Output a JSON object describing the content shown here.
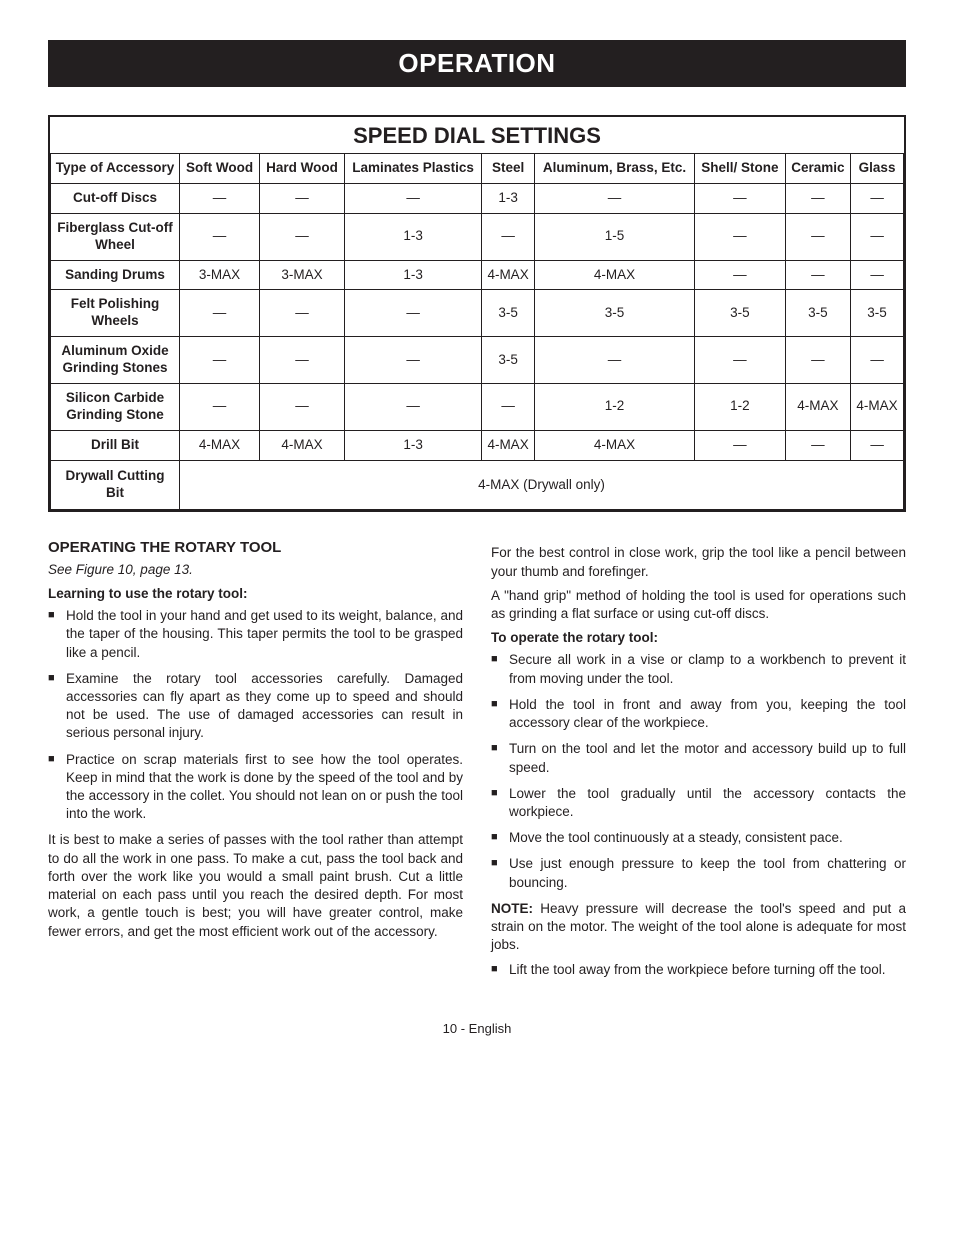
{
  "header": {
    "title": "OPERATION"
  },
  "table": {
    "title": "SPEED DIAL SETTINGS",
    "columns": [
      "Type of Accessory",
      "Soft Wood",
      "Hard Wood",
      "Laminates Plastics",
      "Steel",
      "Aluminum, Brass, Etc.",
      "Shell/ Stone",
      "Ceramic",
      "Glass"
    ],
    "rows": [
      {
        "head": "Cut-off Discs",
        "cells": [
          "—",
          "—",
          "—",
          "1-3",
          "—",
          "—",
          "—",
          "—"
        ]
      },
      {
        "head": "Fiberglass Cut-off Wheel",
        "cells": [
          "—",
          "—",
          "1-3",
          "—",
          "1-5",
          "—",
          "—",
          "—"
        ]
      },
      {
        "head": "Sanding Drums",
        "cells": [
          "3-MAX",
          "3-MAX",
          "1-3",
          "4-MAX",
          "4-MAX",
          "—",
          "—",
          "—"
        ]
      },
      {
        "head": "Felt Polishing Wheels",
        "cells": [
          "—",
          "—",
          "—",
          "3-5",
          "3-5",
          "3-5",
          "3-5",
          "3-5"
        ]
      },
      {
        "head": "Aluminum Oxide Grinding Stones",
        "cells": [
          "—",
          "—",
          "—",
          "3-5",
          "—",
          "—",
          "—",
          "—"
        ]
      },
      {
        "head": "Silicon Carbide Grinding Stone",
        "cells": [
          "—",
          "—",
          "—",
          "—",
          "1-2",
          "1-2",
          "4-MAX",
          "4-MAX"
        ]
      },
      {
        "head": "Drill Bit",
        "cells": [
          "4-MAX",
          "4-MAX",
          "1-3",
          "4-MAX",
          "4-MAX",
          "—",
          "—",
          "—"
        ]
      }
    ],
    "spannedRow": {
      "head": "Drywall Cutting Bit",
      "value": "4-MAX (Drywall only)"
    }
  },
  "left": {
    "title": "OPERATING THE ROTARY TOOL",
    "seeFig": "See Figure 10, page 13.",
    "learnHead": "Learning to use the rotary tool:",
    "bullets": [
      "Hold the tool in your hand and get used to its weight, balance, and the taper of the housing. This taper permits the tool to be grasped like a pencil.",
      "Examine the rotary tool accessories carefully. Damaged accessories can fly apart as they come up to speed and should not be used. The use of damaged accessories can result in serious personal injury.",
      "Practice on scrap materials first to see how the tool operates. Keep in mind that the work is done by the speed of the tool and by the accessory in the collet. You should not lean on or push the tool into the work."
    ],
    "para": "It is best to make a series of passes with the tool rather than attempt to do all the work in one pass. To make a cut, pass the tool back and forth over the work like you would a small paint brush. Cut a little material on each pass until you reach the desired depth. For most work, a gentle touch is best; you will have greater control, make fewer errors, and get the most efficient work out of the accessory."
  },
  "right": {
    "para1": "For the best control in close work, grip the tool like a pencil between your thumb and forefinger.",
    "para2": "A \"hand grip\" method of holding the tool is used for operations such as grinding a flat surface or using cut-off discs.",
    "opHead": "To operate the rotary tool:",
    "bullets": [
      "Secure all work in a vise or clamp to a workbench to prevent it from moving under the tool.",
      "Hold the tool in front and away from you, keeping the tool accessory clear of the workpiece.",
      "Turn on the tool and let the motor and accessory build up to full speed.",
      "Lower the tool gradually until the accessory contacts the workpiece.",
      "Move the tool continuously at a steady, consistent pace.",
      "Use just enough pressure to keep the tool from chattering or bouncing."
    ],
    "noteLabel": "NOTE:",
    "noteText": " Heavy pressure will decrease the tool's speed and put a strain on the motor. The weight of the tool alone is adequate for most jobs.",
    "tail": "Lift the tool away from the workpiece before turning off the tool."
  },
  "footer": {
    "text": "10 - English"
  }
}
